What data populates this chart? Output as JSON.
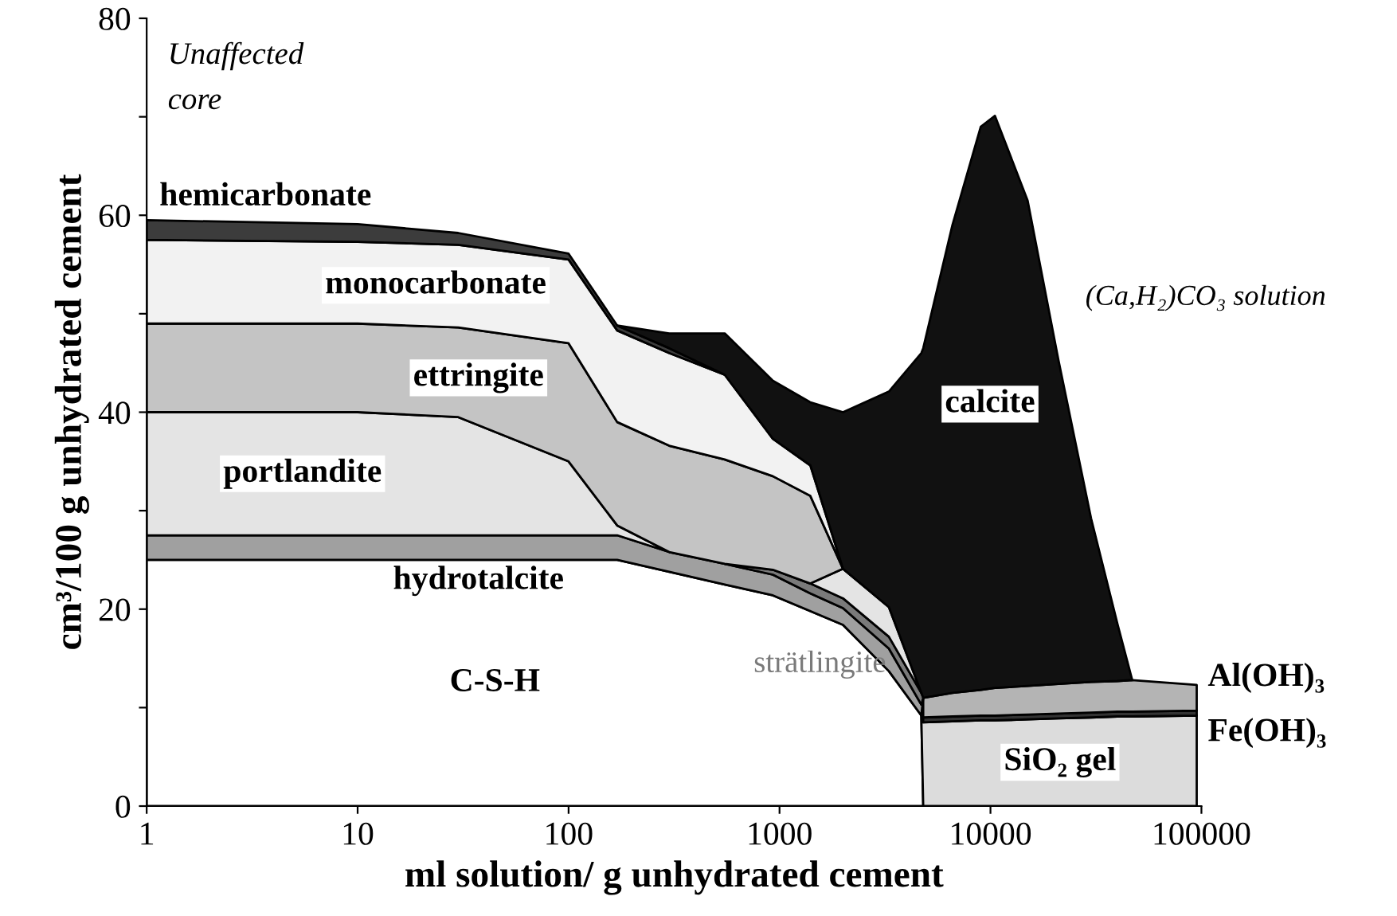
{
  "chart_data": {
    "type": "area",
    "stacked": true,
    "log": "x",
    "xlabel": "ml solution/ g unhydrated cement",
    "ylabel": "cm³/100 g unhydrated cement",
    "xlim": [
      1,
      100000
    ],
    "xticks": [
      1,
      10,
      100,
      1000,
      10000,
      100000
    ],
    "ylim": [
      0,
      80
    ],
    "yticks": [
      0,
      {
        "value": 10,
        "label": null
      },
      20,
      {
        "value": 30,
        "label": null
      },
      40,
      {
        "value": 50,
        "label": null
      },
      60,
      {
        "value": 70,
        "label": null
      },
      80
    ],
    "x": [
      1,
      10,
      30,
      100,
      170,
      300,
      550,
      930,
      1400,
      2000,
      3300,
      4700,
      4800,
      6600,
      9000,
      10500,
      15000,
      21000,
      30000,
      40000,
      47000,
      95000
    ],
    "annotations": [
      "Unaffected\ncore",
      "(Ca,H₂)CO₃ solution"
    ],
    "series": [
      {
        "name": "C-S-H",
        "color": "#ffffff",
        "values": [
          25,
          25,
          25,
          25,
          25,
          23.8,
          22.5,
          21.4,
          19.8,
          18.4,
          13.7,
          9.2,
          0,
          null,
          null,
          null,
          null,
          null,
          null,
          null,
          null,
          null
        ]
      },
      {
        "name": "SiO₂ gel",
        "color": "#dcdcdc",
        "values": [
          null,
          null,
          null,
          null,
          null,
          null,
          null,
          null,
          null,
          null,
          null,
          0,
          8.5,
          8.6,
          8.7,
          8.7,
          8.8,
          8.9,
          9.0,
          9.1,
          9.1,
          9.2
        ]
      },
      {
        "name": "Fe(OH)₃",
        "color": "#333333",
        "values": [
          null,
          null,
          null,
          null,
          null,
          null,
          null,
          null,
          null,
          null,
          null,
          null,
          0.5,
          0.5,
          0.5,
          0.5,
          0.5,
          0.5,
          0.5,
          0.5,
          0.5,
          0.5
        ]
      },
      {
        "name": "Al(OH)₃",
        "color": "#b4b4b4",
        "values": [
          null,
          null,
          null,
          null,
          null,
          null,
          null,
          null,
          null,
          null,
          null,
          null,
          2.0,
          2.4,
          2.6,
          2.8,
          2.9,
          3.0,
          3.1,
          3.1,
          3.2,
          2.6
        ]
      },
      {
        "name": "hydrotalcite",
        "color": "#a0a0a0",
        "values": [
          2.5,
          2.5,
          2.5,
          2.5,
          2.5,
          2.0,
          2.1,
          2.1,
          1.8,
          1.7,
          2.3,
          1.1,
          0,
          null,
          null,
          null,
          null,
          null,
          null,
          null,
          null,
          null
        ]
      },
      {
        "name": "strätlingite",
        "color": "#7a7a7a",
        "values": [
          null,
          null,
          null,
          null,
          null,
          null,
          0,
          0.5,
          1,
          1,
          1.2,
          1.2,
          0,
          null,
          null,
          null,
          null,
          null,
          null,
          null,
          null,
          null
        ]
      },
      {
        "name": "portlandite",
        "color": "#e4e4e4",
        "values": [
          12.5,
          12.5,
          12,
          7.5,
          1.0,
          0,
          null,
          null,
          0,
          3,
          3,
          0,
          null,
          null,
          null,
          null,
          null,
          null,
          null,
          null,
          null,
          null
        ]
      },
      {
        "name": "ettringite",
        "color": "#c4c4c4",
        "values": [
          9,
          9,
          9.1,
          12,
          10.5,
          10.8,
          10.6,
          9.5,
          8.9,
          0,
          null,
          null,
          null,
          null,
          null,
          null,
          null,
          null,
          null,
          null,
          null,
          null
        ]
      },
      {
        "name": "monocarbonate",
        "color": "#f2f2f2",
        "values": [
          8.5,
          8.3,
          8.4,
          8.5,
          9.3,
          9.4,
          8.6,
          3.8,
          3.1,
          0,
          null,
          null,
          null,
          null,
          null,
          null,
          null,
          null,
          null,
          null,
          null,
          null
        ]
      },
      {
        "name": "hemicarbonate",
        "color": "#3c3c3c",
        "values": [
          2.0,
          1.8,
          1.2,
          0.6,
          0.5,
          0.5,
          0,
          null,
          null,
          null,
          null,
          null,
          null,
          null,
          null,
          null,
          null,
          null,
          null,
          null,
          null,
          null
        ]
      },
      {
        "name": "calcite",
        "color": "#111111",
        "values": [
          null,
          null,
          null,
          null,
          0,
          1.5,
          4.2,
          5.9,
          6.4,
          15.9,
          21.9,
          34.5,
          35.5,
          47.5,
          57.2,
          58.1,
          49.3,
          32.9,
          16.6,
          5.8,
          0,
          null
        ]
      }
    ]
  }
}
